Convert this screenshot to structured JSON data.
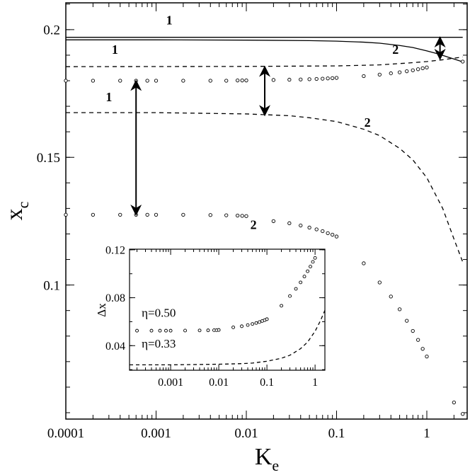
{
  "chart_data": [
    {
      "type": "line",
      "role": "main",
      "xscale": "log",
      "xlim": [
        0.0001,
        2.8
      ],
      "ylim": [
        0.0475,
        0.2105
      ],
      "xlabel": "K",
      "xlabel_sub": "e",
      "ylabel": "x",
      "ylabel_sub": "c",
      "xticks": [
        0.0001,
        0.001,
        0.01,
        0.1,
        1
      ],
      "xtick_labels": [
        "0.0001",
        "0.001",
        "0.01",
        "0.1",
        "1"
      ],
      "yticks": [
        0.1,
        0.15,
        0.2
      ],
      "ytick_labels": [
        "0.1",
        "0.15",
        "0.2"
      ],
      "grid": false,
      "series": [
        {
          "style": "solid",
          "x": [
            0.0001,
            2.5
          ],
          "y": [
            0.197,
            0.197
          ]
        },
        {
          "style": "solid",
          "x": [
            0.0001,
            0.001,
            0.01,
            0.05,
            0.1,
            0.2,
            0.3,
            0.5,
            0.7,
            1.0,
            1.3,
            1.6,
            2.0,
            2.5
          ],
          "y": [
            0.196,
            0.196,
            0.1959,
            0.1957,
            0.1955,
            0.1951,
            0.1947,
            0.1938,
            0.193,
            0.1917,
            0.1906,
            0.1896,
            0.1885,
            0.1874
          ]
        },
        {
          "style": "dashed",
          "x": [
            0.0001,
            0.01,
            0.1,
            0.3,
            0.6,
            1.0,
            1.5,
            2.5
          ],
          "y": [
            0.1855,
            0.1856,
            0.1858,
            0.1862,
            0.1869,
            0.1875,
            0.1882,
            0.1893
          ]
        },
        {
          "style": "dashed",
          "x": [
            0.0001,
            0.001,
            0.01,
            0.03,
            0.05,
            0.1,
            0.2,
            0.3,
            0.5,
            0.7,
            1.0,
            1.5,
            2.0,
            2.5
          ],
          "y": [
            0.1675,
            0.1675,
            0.167,
            0.1663,
            0.1655,
            0.164,
            0.161,
            0.1585,
            0.1535,
            0.149,
            0.142,
            0.13,
            0.118,
            0.109
          ]
        },
        {
          "style": "markers",
          "x": [
            0.0001,
            0.0002,
            0.0004,
            0.0006,
            0.0008,
            0.001,
            0.002,
            0.004,
            0.006,
            0.008,
            0.009,
            0.01,
            0.02,
            0.03,
            0.04,
            0.05,
            0.06,
            0.07,
            0.08,
            0.09,
            0.1,
            0.2,
            0.3,
            0.4,
            0.5,
            0.6,
            0.7,
            0.8,
            0.9,
            1.0,
            2.5
          ],
          "y": [
            0.18,
            0.18,
            0.18,
            0.18,
            0.18,
            0.18,
            0.18,
            0.18,
            0.18,
            0.1801,
            0.1801,
            0.1801,
            0.1803,
            0.1804,
            0.1805,
            0.1806,
            0.1807,
            0.1808,
            0.1809,
            0.181,
            0.1811,
            0.1818,
            0.1824,
            0.1829,
            0.1833,
            0.1837,
            0.1841,
            0.1845,
            0.1849,
            0.1852,
            0.1875
          ]
        },
        {
          "style": "markers",
          "x": [
            0.0001,
            0.0002,
            0.0004,
            0.0006,
            0.0008,
            0.001,
            0.002,
            0.004,
            0.006,
            0.008,
            0.009,
            0.01,
            0.02,
            0.03,
            0.04,
            0.05,
            0.06,
            0.07,
            0.08,
            0.09,
            0.1,
            0.2,
            0.3,
            0.4,
            0.5,
            0.6,
            0.7,
            0.8,
            0.9,
            1.0,
            2.0,
            2.5
          ],
          "y": [
            0.1275,
            0.1275,
            0.1275,
            0.1275,
            0.1275,
            0.1275,
            0.1275,
            0.1274,
            0.1273,
            0.1272,
            0.1271,
            0.127,
            0.125,
            0.1242,
            0.1233,
            0.1225,
            0.1218,
            0.1211,
            0.1203,
            0.1197,
            0.119,
            0.1085,
            0.101,
            0.0955,
            0.0905,
            0.086,
            0.082,
            0.0785,
            0.075,
            0.072,
            0.054,
            0.0495
          ]
        }
      ],
      "annotations": [
        {
          "text": "1",
          "x": 0.0014,
          "y": 0.202
        },
        {
          "text": "2",
          "x": 0.45,
          "y": 0.1905
        },
        {
          "text": "1",
          "x": 0.00035,
          "y": 0.1905
        },
        {
          "text": "1",
          "x": 0.0003,
          "y": 0.172
        },
        {
          "text": "2",
          "x": 0.22,
          "y": 0.162
        },
        {
          "text": "2",
          "x": 0.012,
          "y": 0.122
        }
      ],
      "arrows": [
        {
          "x": 1.4,
          "y_from": 0.197,
          "y_to": 0.1885
        },
        {
          "x": 0.016,
          "y_from": 0.1855,
          "y_to": 0.1665
        },
        {
          "x": 0.0006,
          "y_from": 0.18,
          "y_to": 0.1275
        }
      ]
    },
    {
      "type": "line",
      "role": "inset",
      "xscale": "log",
      "xlim": [
        0.00014,
        1.6
      ],
      "ylim": [
        0.0195,
        0.1205
      ],
      "ylabel": "Δx",
      "xticks": [
        0.001,
        0.01,
        0.1,
        1
      ],
      "xtick_labels": [
        "0.001",
        "0.01",
        "0.1",
        "1"
      ],
      "yticks": [
        0.04,
        0.08,
        0.12
      ],
      "ytick_labels": [
        "0.04",
        "0.08",
        "0.12"
      ],
      "grid": false,
      "series": [
        {
          "name": "η=0.50",
          "style": "markers",
          "x": [
            0.0002,
            0.0004,
            0.0006,
            0.0008,
            0.001,
            0.002,
            0.004,
            0.006,
            0.008,
            0.009,
            0.01,
            0.02,
            0.03,
            0.04,
            0.05,
            0.06,
            0.07,
            0.08,
            0.09,
            0.1,
            0.2,
            0.3,
            0.4,
            0.5,
            0.6,
            0.7,
            0.8,
            0.9,
            1.0
          ],
          "y": [
            0.0525,
            0.0525,
            0.0525,
            0.0525,
            0.0525,
            0.0526,
            0.0527,
            0.0528,
            0.0529,
            0.0529,
            0.0531,
            0.0553,
            0.0562,
            0.0572,
            0.0581,
            0.0589,
            0.0597,
            0.0606,
            0.0613,
            0.0621,
            0.0733,
            0.0814,
            0.0874,
            0.0928,
            0.0977,
            0.1021,
            0.106,
            0.1099,
            0.1132
          ]
        },
        {
          "name": "η=0.33",
          "style": "dashed",
          "x": [
            0.00014,
            0.001,
            0.01,
            0.03,
            0.05,
            0.1,
            0.2,
            0.3,
            0.5,
            0.7,
            1.0,
            1.3,
            1.6
          ],
          "y": [
            0.024,
            0.024,
            0.0245,
            0.025,
            0.0255,
            0.027,
            0.0295,
            0.032,
            0.0375,
            0.043,
            0.052,
            0.061,
            0.0695
          ]
        }
      ],
      "labels": [
        {
          "text": "η=0.50",
          "x": 0.00025,
          "y": 0.064
        },
        {
          "text": "η=0.33",
          "x": 0.00025,
          "y": 0.0385
        }
      ]
    }
  ]
}
